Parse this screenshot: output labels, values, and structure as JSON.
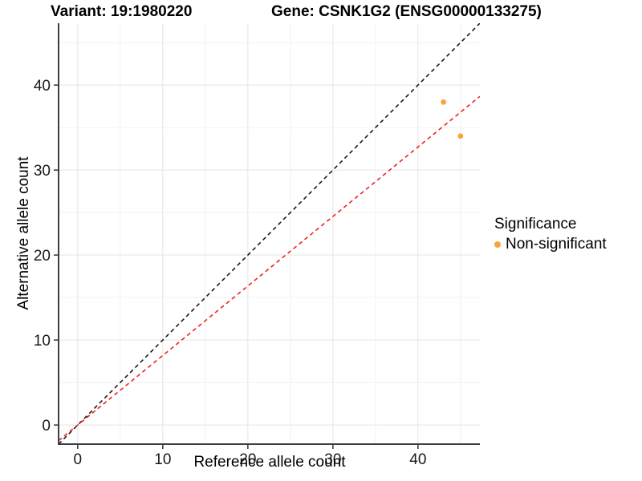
{
  "chart_data": {
    "type": "scatter",
    "title_left": "Variant: 19:1980220",
    "title_right": "Gene: CSNK1G2 (ENSG00000133275)",
    "xlabel": "Reference allele count",
    "ylabel": "Alternative allele count",
    "xlim": [
      -2.25,
      47.28
    ],
    "ylim": [
      -2.25,
      47.28
    ],
    "major_ticks": [
      0,
      10,
      20,
      30,
      40
    ],
    "minor_ticks": [
      5,
      15,
      25,
      35,
      45
    ],
    "grid": true,
    "points": [
      {
        "x": 43,
        "y": 38,
        "series": "Non-significant"
      },
      {
        "x": 45,
        "y": 34,
        "series": "Non-significant"
      }
    ],
    "lines": [
      {
        "name": "identity-line",
        "slope": 1.0,
        "intercept": 0,
        "color": "#1a1a1a",
        "style": "dashed"
      },
      {
        "name": "expected-ratio-line",
        "slope": 0.818,
        "intercept": 0,
        "color": "#ee2222",
        "style": "dashed"
      }
    ],
    "legend": {
      "position": "right",
      "title": "Significance",
      "entries": [
        {
          "label": "Non-significant",
          "color": "#fba437",
          "marker": "circle"
        }
      ]
    },
    "colors": {
      "point": "#fba437",
      "major_grid": "#e4e4e4",
      "minor_grid": "#f1f1f1",
      "axis_line": "#3f3f3f",
      "tick": "#333333",
      "tick_label": "#1a1a1a",
      "panel_bg": "#ffffff"
    }
  }
}
